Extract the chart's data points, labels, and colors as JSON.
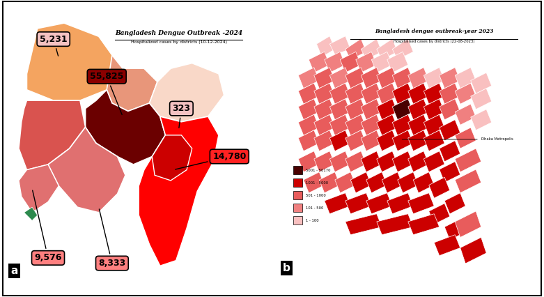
{
  "title_a": "Bangladesh Dengue Outbreak -2024",
  "subtitle_a": "Hospitalized cases by districts (10-12-2024)",
  "title_b": "Bangladesh dengue outbreak-year 2023",
  "subtitle_b": "Hospitalised cases by districts (22-08-2023)",
  "legend_b": [
    {
      "label": "5001 - 50170",
      "color": "#4a0000"
    },
    {
      "label": "1001 - 5000",
      "color": "#cc0000"
    },
    {
      "label": "501 - 1000",
      "color": "#e85c5c"
    },
    {
      "label": "101 - 500",
      "color": "#f08080"
    },
    {
      "label": "1 - 100",
      "color": "#f9c0c0"
    }
  ],
  "bg_color": "#ffffff",
  "label_a": "a",
  "label_b": "b"
}
